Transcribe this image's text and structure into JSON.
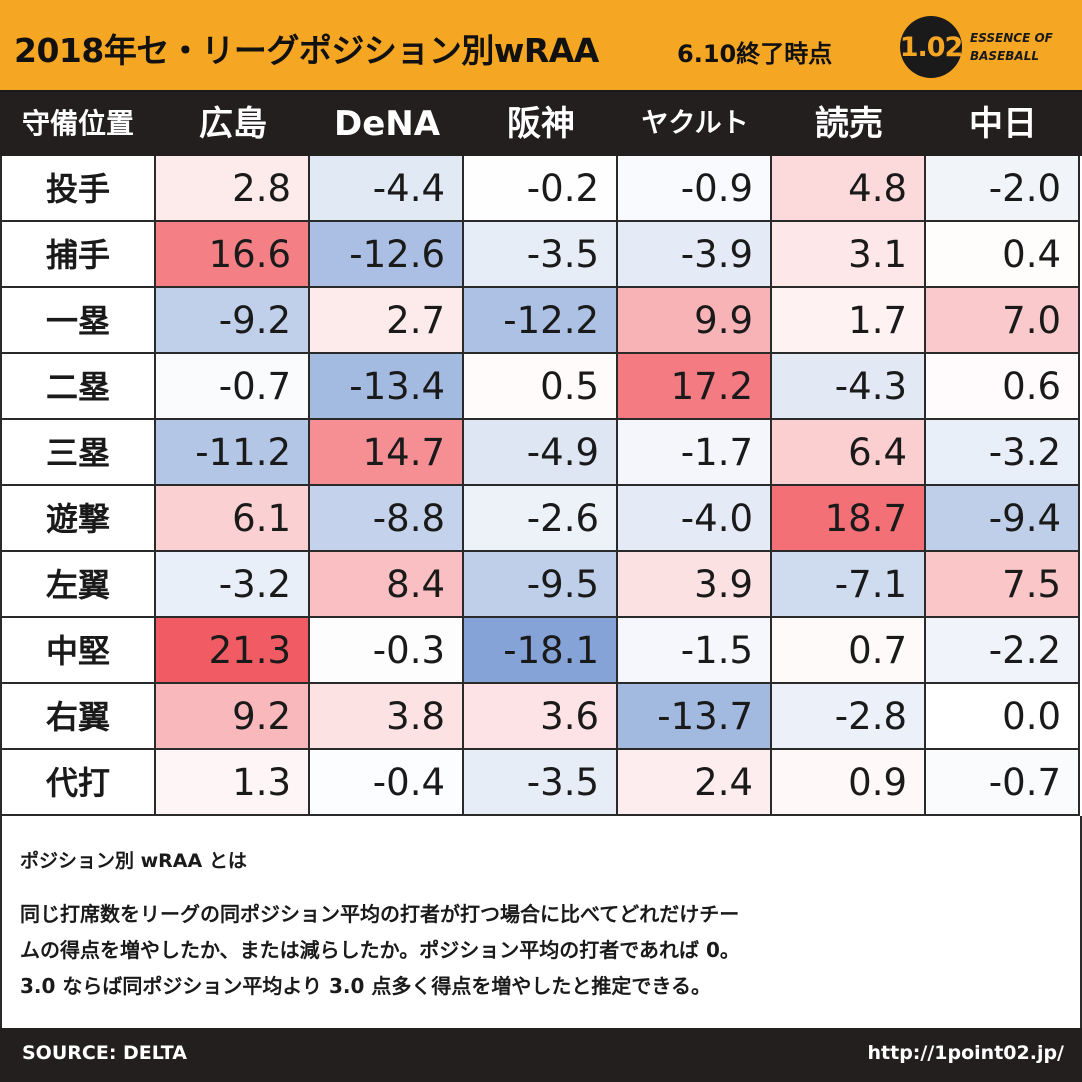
{
  "header": {
    "title": "2018年セ・リーグポジション別wRAA",
    "subtitle": "6.10終了時点",
    "logo_badge": "1.02",
    "logo_line1": "ESSENCE OF",
    "logo_line2": "BASEBALL"
  },
  "colors": {
    "header_bg": "#f5a623",
    "dark": "#231f1f",
    "positive_max": "#f15c64",
    "negative_max": "#6f93cf",
    "neutral": "#ffffff"
  },
  "chart_data": {
    "type": "heatmap",
    "title": "2018年セ・リーグポジション別wRAA",
    "subtitle": "6.10終了時点",
    "corner_label": "守備位置",
    "columns": [
      "広島",
      "DeNA",
      "阪神",
      "ヤクルト",
      "読売",
      "中日"
    ],
    "rows": [
      "投手",
      "捕手",
      "一塁",
      "二塁",
      "三塁",
      "遊撃",
      "左翼",
      "中堅",
      "右翼",
      "代打"
    ],
    "values": [
      [
        2.8,
        -4.4,
        -0.2,
        -0.9,
        4.8,
        -2.0
      ],
      [
        16.6,
        -12.6,
        -3.5,
        -3.9,
        3.1,
        0.4
      ],
      [
        -9.2,
        2.7,
        -12.2,
        9.9,
        1.7,
        7.0
      ],
      [
        -0.7,
        -13.4,
        0.5,
        17.2,
        -4.3,
        0.6
      ],
      [
        -11.2,
        14.7,
        -4.9,
        -1.7,
        6.4,
        -3.2
      ],
      [
        6.1,
        -8.8,
        -2.6,
        -4.0,
        18.7,
        -9.4
      ],
      [
        -3.2,
        8.4,
        -9.5,
        3.9,
        -7.1,
        7.5
      ],
      [
        21.3,
        -0.3,
        -18.1,
        -1.5,
        0.7,
        -2.2
      ],
      [
        9.2,
        3.8,
        3.6,
        -13.7,
        -2.8,
        0.0
      ],
      [
        1.3,
        -0.4,
        -3.5,
        2.4,
        0.9,
        -0.7
      ]
    ]
  },
  "description": {
    "title": "ポジション別 wRAA とは",
    "lines": [
      "同じ打席数をリーグの同ポジション平均の打者が打つ場合に比べてどれだけチー",
      "ムの得点を増やしたか、または減らしたか。ポジション平均の打者であれば 0。",
      "3.0 ならば同ポジション平均より 3.0 点多く得点を増やしたと推定できる。"
    ]
  },
  "footer": {
    "source": "SOURCE: DELTA",
    "url": "http://1point02.jp/"
  }
}
